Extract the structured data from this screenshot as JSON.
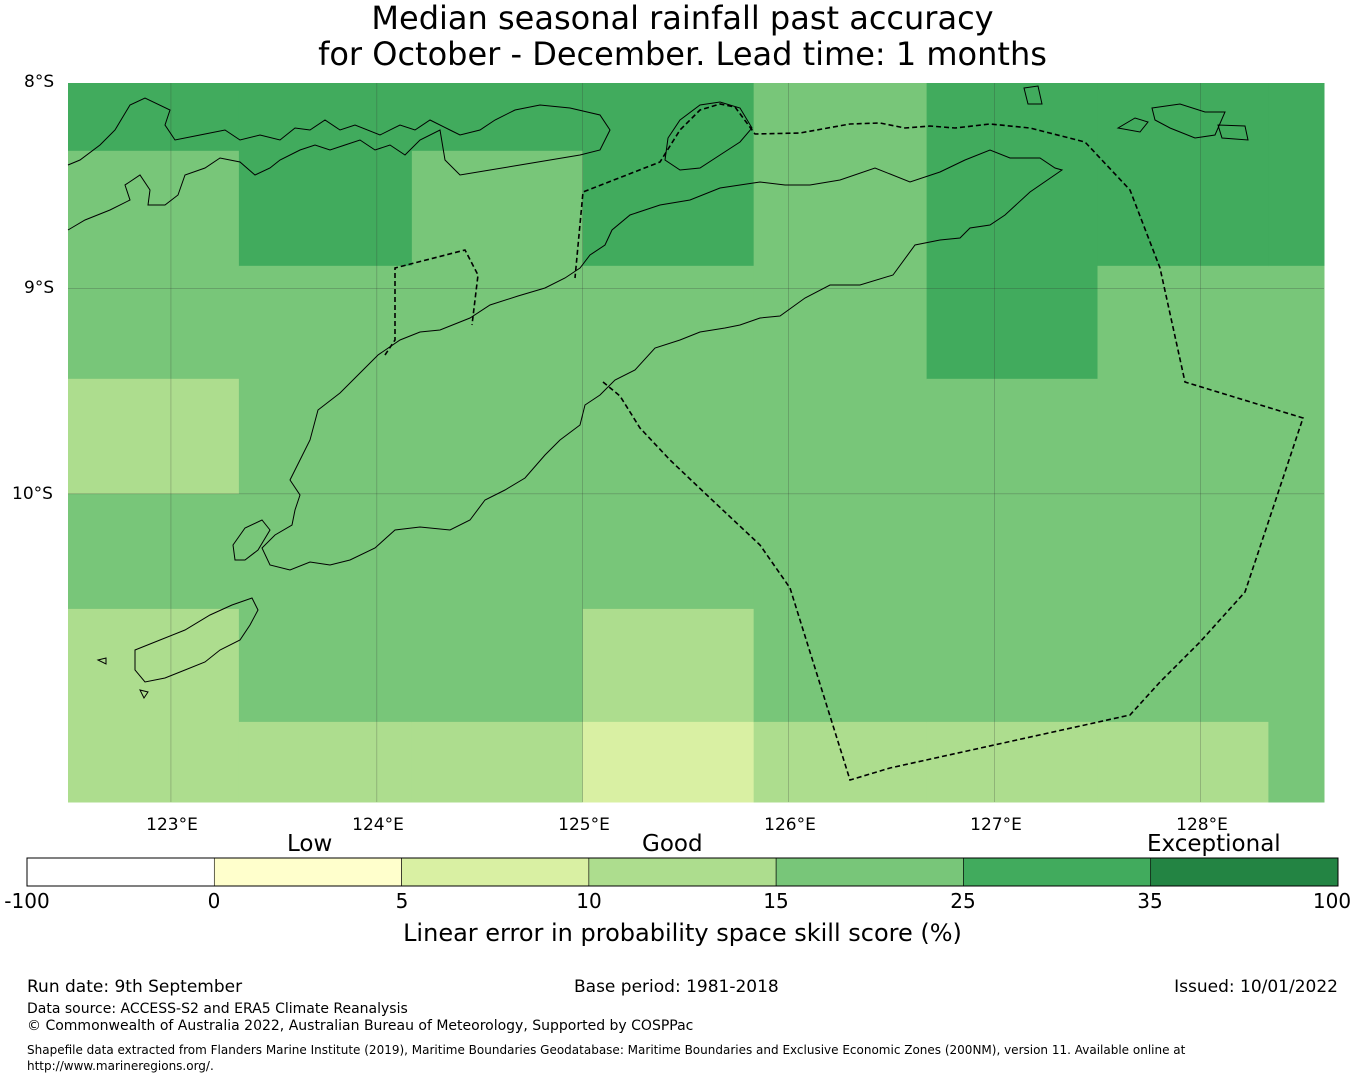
{
  "title": {
    "line1": "Median seasonal rainfall past accuracy",
    "line2": "for October - December. Lead time: 1 months"
  },
  "map": {
    "lat_labels": [
      "8°S",
      "9°S",
      "10°S"
    ],
    "lon_labels": [
      "123°E",
      "124°E",
      "125°E",
      "126°E",
      "127°E",
      "128°E"
    ],
    "extent": {
      "lon_min": 122.5,
      "lon_max": 128.6,
      "lat_max": -8.0,
      "lat_min": -11.5
    },
    "grid_cells": [
      {
        "lon": [
          122.5,
          123.33
        ],
        "lat": [
          -8.0,
          -8.33
        ],
        "score_class": "25-35"
      },
      {
        "lon": [
          122.5,
          123.33
        ],
        "lat": [
          -8.33,
          -9.44
        ],
        "score_class": "15-25"
      },
      {
        "lon": [
          122.5,
          123.33
        ],
        "lat": [
          -9.44,
          -10.0
        ],
        "score_class": "10-15"
      },
      {
        "lon": [
          122.5,
          123.33
        ],
        "lat": [
          -10.0,
          -10.56
        ],
        "score_class": "15-25"
      },
      {
        "lon": [
          122.5,
          123.33
        ],
        "lat": [
          -10.56,
          -11.5
        ],
        "score_class": "10-15"
      },
      {
        "lon": [
          123.33,
          124.17
        ],
        "lat": [
          -8.0,
          -8.89
        ],
        "score_class": "25-35"
      },
      {
        "lon": [
          123.33,
          124.17
        ],
        "lat": [
          -8.89,
          -11.11
        ],
        "score_class": "15-25"
      },
      {
        "lon": [
          123.33,
          124.17
        ],
        "lat": [
          -11.11,
          -11.5
        ],
        "score_class": "10-15"
      },
      {
        "lon": [
          124.17,
          125.0
        ],
        "lat": [
          -8.0,
          -8.33
        ],
        "score_class": "25-35"
      },
      {
        "lon": [
          124.17,
          125.0
        ],
        "lat": [
          -8.33,
          -11.11
        ],
        "score_class": "15-25"
      },
      {
        "lon": [
          124.17,
          125.0
        ],
        "lat": [
          -11.11,
          -11.5
        ],
        "score_class": "10-15"
      },
      {
        "lon": [
          125.0,
          125.83
        ],
        "lat": [
          -8.0,
          -8.89
        ],
        "score_class": "25-35"
      },
      {
        "lon": [
          125.0,
          125.83
        ],
        "lat": [
          -8.89,
          -10.56
        ],
        "score_class": "15-25"
      },
      {
        "lon": [
          125.0,
          125.83
        ],
        "lat": [
          -10.56,
          -11.11
        ],
        "score_class": "10-15"
      },
      {
        "lon": [
          125.0,
          125.83
        ],
        "lat": [
          -11.11,
          -11.5
        ],
        "score_class": "5-10"
      },
      {
        "lon": [
          125.83,
          126.67
        ],
        "lat": [
          -8.0,
          -11.11
        ],
        "score_class": "15-25"
      },
      {
        "lon": [
          125.83,
          126.67
        ],
        "lat": [
          -11.11,
          -11.5
        ],
        "score_class": "10-15"
      },
      {
        "lon": [
          126.67,
          127.5
        ],
        "lat": [
          -8.0,
          -9.44
        ],
        "score_class": "25-35"
      },
      {
        "lon": [
          126.67,
          127.5
        ],
        "lat": [
          -9.44,
          -11.11
        ],
        "score_class": "15-25"
      },
      {
        "lon": [
          126.67,
          127.5
        ],
        "lat": [
          -11.11,
          -11.5
        ],
        "score_class": "10-15"
      },
      {
        "lon": [
          127.5,
          128.33
        ],
        "lat": [
          -8.0,
          -8.89
        ],
        "score_class": "25-35"
      },
      {
        "lon": [
          127.5,
          128.33
        ],
        "lat": [
          -8.89,
          -11.11
        ],
        "score_class": "15-25"
      },
      {
        "lon": [
          127.5,
          128.33
        ],
        "lat": [
          -11.11,
          -11.5
        ],
        "score_class": "10-15"
      },
      {
        "lon": [
          128.33,
          128.6
        ],
        "lat": [
          -8.0,
          -8.89
        ],
        "score_class": "25-35"
      },
      {
        "lon": [
          128.33,
          128.6
        ],
        "lat": [
          -8.89,
          -11.5
        ],
        "score_class": "15-25"
      }
    ]
  },
  "legend": {
    "categories": [
      "Low",
      "Good",
      "Exceptional"
    ],
    "bins": [
      {
        "range": "-100-0",
        "color": "#ffffff"
      },
      {
        "range": "0-5",
        "color": "#ffffcc"
      },
      {
        "range": "5-10",
        "color": "#d9f0a3"
      },
      {
        "range": "10-15",
        "color": "#addd8e"
      },
      {
        "range": "15-25",
        "color": "#78c679"
      },
      {
        "range": "25-35",
        "color": "#41ab5d"
      },
      {
        "range": "35-100",
        "color": "#238443"
      }
    ],
    "ticks": [
      "-100",
      "0",
      "5",
      "10",
      "15",
      "25",
      "35",
      "100"
    ],
    "title": "Linear error in probability space skill score (%)"
  },
  "footer": {
    "run_date": "Run date: 9th September",
    "base_period": "Base period: 1981-2018",
    "issued": "Issued: 10/01/2022",
    "data_source": "Data source: ACCESS-S2 and ERA5 Climate Reanalysis",
    "copyright": "© Commonwealth of Australia 2022, Australian Bureau of Meteorology, Supported by COSPPac",
    "shapefile": "Shapefile data extracted from Flanders Marine Institute (2019), Maritime Boundaries Geodatabase: Maritime Boundaries and Exclusive Economic Zones (200NM), version 11. Available online at http://www.marineregions.org/."
  }
}
